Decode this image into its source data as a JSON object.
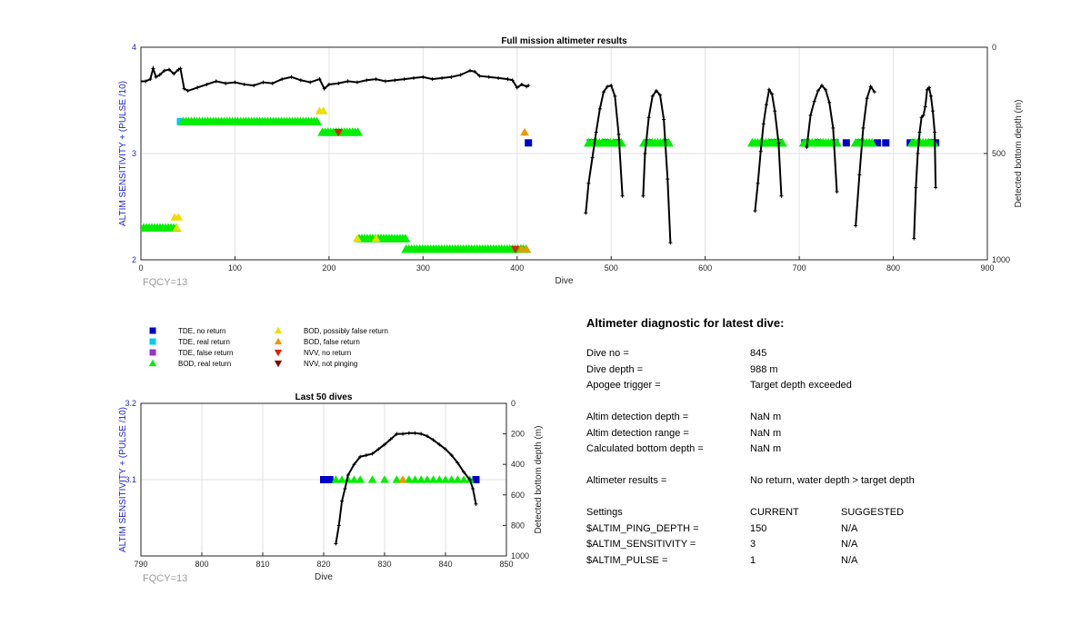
{
  "chart_data": [
    {
      "type": "scatter",
      "title": "Full mission altimeter results",
      "xlabel": "Dive",
      "ylabel": "ALTIM SENSITIVITY + (PULSE /10)",
      "ylabel_right": "Detected bottom depth (m)",
      "xlim": [
        0,
        900
      ],
      "ylim": [
        2,
        4
      ],
      "ylim_right": [
        1000,
        0
      ],
      "xticks": [
        0,
        100,
        200,
        300,
        400,
        500,
        600,
        700,
        800,
        900
      ],
      "yticks": [
        2,
        3,
        4
      ],
      "yticks_right": [
        0,
        500,
        1000
      ],
      "grid": true,
      "annotation": "FQCY=13",
      "series": [
        {
          "name": "TDE, no return",
          "color": "#0000cc",
          "x": [
            412,
            478,
            494,
            507,
            540,
            558,
            672,
            678,
            706,
            720,
            738,
            750,
            765,
            783,
            792,
            818,
            840,
            845
          ],
          "y": [
            3.1,
            3.1,
            3.1,
            3.1,
            3.1,
            3.1,
            3.1,
            3.1,
            3.1,
            3.1,
            3.1,
            3.1,
            3.1,
            3.1,
            3.1,
            3.1,
            3.1,
            3.1
          ]
        },
        {
          "name": "TDE, real return",
          "color": "#00ccee",
          "x": [
            42
          ],
          "y": [
            3.3
          ]
        },
        {
          "name": "BOD, real return",
          "color": "#00ee00",
          "segments": [
            {
              "x": [
                0,
                38
              ],
              "y": 2.3
            },
            {
              "x": [
                45,
                188
              ],
              "y": 3.3
            },
            {
              "x": [
                193,
                232
              ],
              "y": 3.2
            },
            {
              "x": [
                232,
                282
              ],
              "y": 2.2
            },
            {
              "x": [
                282,
                412
              ],
              "y": 2.1
            },
            {
              "x": [
                476,
                512
              ],
              "y": 3.1
            },
            {
              "x": [
                535,
                563
              ],
              "y": 3.1
            },
            {
              "x": [
                650,
                683
              ],
              "y": 3.1
            },
            {
              "x": [
                705,
                740
              ],
              "y": 3.1
            },
            {
              "x": [
                760,
                778
              ],
              "y": 3.1
            },
            {
              "x": [
                820,
                845
              ],
              "y": 3.1
            }
          ]
        },
        {
          "name": "BOD, possibly false return",
          "color": "#eedd00",
          "x": [
            190,
            194,
            36,
            40,
            38,
            230,
            250
          ],
          "y": [
            3.4,
            3.4,
            2.4,
            2.4,
            2.3,
            2.2,
            2.2
          ]
        },
        {
          "name": "BOD, false return",
          "color": "#ee9900",
          "x": [
            408,
            410,
            405
          ],
          "y": [
            3.2,
            2.1,
            2.1
          ]
        },
        {
          "name": "NVV, no return",
          "color": "#dd2200",
          "x": [
            210,
            398
          ],
          "y": [
            3.2,
            2.1
          ]
        },
        {
          "name": "Detected bottom depth",
          "color": "#000000",
          "axis": "right",
          "x": [
            0,
            5,
            10,
            13,
            16,
            20,
            25,
            30,
            35,
            40,
            42,
            46,
            50,
            60,
            70,
            80,
            90,
            100,
            110,
            120,
            130,
            140,
            150,
            160,
            170,
            180,
            190,
            195,
            200,
            210,
            220,
            230,
            240,
            250,
            260,
            270,
            280,
            290,
            300,
            310,
            320,
            330,
            340,
            350,
            355,
            360,
            370,
            380,
            390,
            395,
            400,
            405,
            410,
            412
          ],
          "y": [
            160,
            160,
            150,
            100,
            140,
            130,
            110,
            105,
            125,
            105,
            100,
            195,
            205,
            190,
            175,
            160,
            170,
            165,
            175,
            180,
            165,
            170,
            150,
            140,
            155,
            165,
            150,
            195,
            175,
            170,
            160,
            165,
            155,
            150,
            160,
            155,
            150,
            145,
            140,
            150,
            145,
            140,
            130,
            110,
            115,
            135,
            140,
            145,
            150,
            155,
            190,
            175,
            185,
            180
          ]
        },
        {
          "name": "Detected bottom depth",
          "color": "#000000",
          "axis": "right",
          "x": [
            473,
            476,
            480,
            484,
            488,
            492,
            496,
            500,
            504,
            508,
            512
          ],
          "y": [
            780,
            640,
            520,
            400,
            290,
            210,
            185,
            180,
            230,
            410,
            700
          ]
        },
        {
          "name": "Detected bottom depth",
          "color": "#000000",
          "axis": "right",
          "x": [
            534,
            536,
            540,
            544,
            548,
            552,
            556,
            560,
            563
          ],
          "y": [
            700,
            500,
            330,
            230,
            205,
            225,
            340,
            620,
            920
          ]
        },
        {
          "name": "Detected bottom depth",
          "color": "#000000",
          "axis": "right",
          "x": [
            653,
            656,
            659,
            662,
            665,
            668,
            671,
            674,
            678,
            681
          ],
          "y": [
            770,
            640,
            490,
            360,
            270,
            200,
            220,
            300,
            450,
            700
          ]
        },
        {
          "name": "Detected bottom depth",
          "color": "#000000",
          "axis": "right",
          "x": [
            708,
            712,
            716,
            720,
            724,
            728,
            732,
            736,
            740
          ],
          "y": [
            470,
            320,
            255,
            205,
            180,
            200,
            260,
            380,
            680
          ]
        },
        {
          "name": "Detected bottom depth",
          "color": "#000000",
          "axis": "right",
          "x": [
            760,
            764,
            768,
            772,
            776,
            780
          ],
          "y": [
            840,
            600,
            380,
            240,
            185,
            210
          ]
        },
        {
          "name": "Detected bottom depth",
          "color": "#000000",
          "axis": "right",
          "x": [
            822,
            824,
            826,
            828,
            830,
            832,
            834,
            836,
            838,
            840,
            842,
            844,
            845
          ],
          "y": [
            900,
            660,
            500,
            400,
            330,
            320,
            280,
            200,
            190,
            230,
            300,
            400,
            660
          ]
        }
      ]
    },
    {
      "type": "scatter",
      "title": "Last 50 dives",
      "xlabel": "Dive",
      "ylabel": "ALTIM SENSITIVITY + (PULSE /10)",
      "ylabel_right": "Detected bottom depth (m)",
      "xlim": [
        790,
        850
      ],
      "ylim": [
        3.0,
        3.2
      ],
      "ylim_right": [
        1000,
        0
      ],
      "xticks": [
        790,
        800,
        810,
        820,
        830,
        840,
        850
      ],
      "yticks": [
        3.1,
        3.2
      ],
      "yticks_right": [
        0,
        200,
        400,
        600,
        800,
        1000
      ],
      "grid": true,
      "annotation": "FQCY=13",
      "series": [
        {
          "name": "TDE, no return",
          "color": "#0000cc",
          "x": [
            820,
            821,
            845
          ],
          "y": [
            3.1,
            3.1,
            3.1
          ]
        },
        {
          "name": "BOD, real return",
          "color": "#00ee00",
          "x": [
            822,
            823,
            824,
            825,
            826,
            828,
            830,
            832,
            833,
            834,
            835,
            836,
            837,
            838,
            839,
            840,
            841,
            842,
            843,
            844
          ],
          "y": [
            3.1,
            3.1,
            3.1,
            3.1,
            3.1,
            3.1,
            3.1,
            3.1,
            3.1,
            3.1,
            3.1,
            3.1,
            3.1,
            3.1,
            3.1,
            3.1,
            3.1,
            3.1,
            3.1,
            3.1
          ]
        },
        {
          "name": "BOD, false return",
          "color": "#ee9900",
          "x": [
            833
          ],
          "y": [
            3.1
          ]
        },
        {
          "name": "Detected bottom depth",
          "color": "#000000",
          "axis": "right",
          "x": [
            822,
            822.5,
            823,
            823.5,
            824,
            825,
            826,
            827,
            828,
            829,
            830,
            831,
            832,
            833,
            834,
            835,
            836,
            837,
            838,
            839,
            840,
            841,
            842,
            843,
            844,
            844.5,
            845
          ],
          "y": [
            920,
            800,
            640,
            560,
            470,
            400,
            350,
            340,
            330,
            300,
            270,
            235,
            200,
            200,
            195,
            195,
            200,
            215,
            240,
            270,
            300,
            340,
            390,
            450,
            500,
            560,
            660
          ]
        }
      ]
    }
  ],
  "legend": [
    {
      "label": "TDE, no return",
      "marker": "square",
      "color": "#0000cc"
    },
    {
      "label": "TDE, real return",
      "marker": "square",
      "color": "#00ccee"
    },
    {
      "label": "TDE, false return",
      "marker": "square",
      "color": "#9933cc"
    },
    {
      "label": "BOD, real return",
      "marker": "triangle-up",
      "color": "#00ee00"
    },
    {
      "label": "BOD, possibly false return",
      "marker": "triangle-up",
      "color": "#eedd00"
    },
    {
      "label": "BOD, false return",
      "marker": "triangle-up",
      "color": "#ee9900"
    },
    {
      "label": "NVV, no return",
      "marker": "triangle-down",
      "color": "#dd2200"
    },
    {
      "label": "NVV, not pinging",
      "marker": "triangle-down",
      "color": "#880000"
    }
  ],
  "diagnostic": {
    "title": "Altimeter diagnostic for latest dive:",
    "dive_no_label": "Dive no =",
    "dive_no_value": "845",
    "dive_depth_label": "Dive depth =",
    "dive_depth_value": "988 m",
    "apogee_label": "Apogee trigger =",
    "apogee_value": "Target depth exceeded",
    "det_depth_label": "Altim detection depth =",
    "det_depth_value": "NaN m",
    "det_range_label": "Altim detection range =",
    "det_range_value": "NaN m",
    "calc_depth_label": "Calculated bottom depth =",
    "calc_depth_value": "NaN m",
    "results_label": "Altimeter results =",
    "results_value": "No return, water depth > target depth",
    "settings_header": "Settings",
    "current_header": "CURRENT",
    "suggested_header": "SUGGESTED",
    "settings": [
      {
        "name": "$ALTIM_PING_DEPTH =",
        "current": "150",
        "suggested": "N/A"
      },
      {
        "name": "$ALTIM_SENSITIVITY =",
        "current": "3",
        "suggested": "N/A"
      },
      {
        "name": "$ALTIM_PULSE =",
        "current": "1",
        "suggested": "N/A"
      }
    ]
  }
}
